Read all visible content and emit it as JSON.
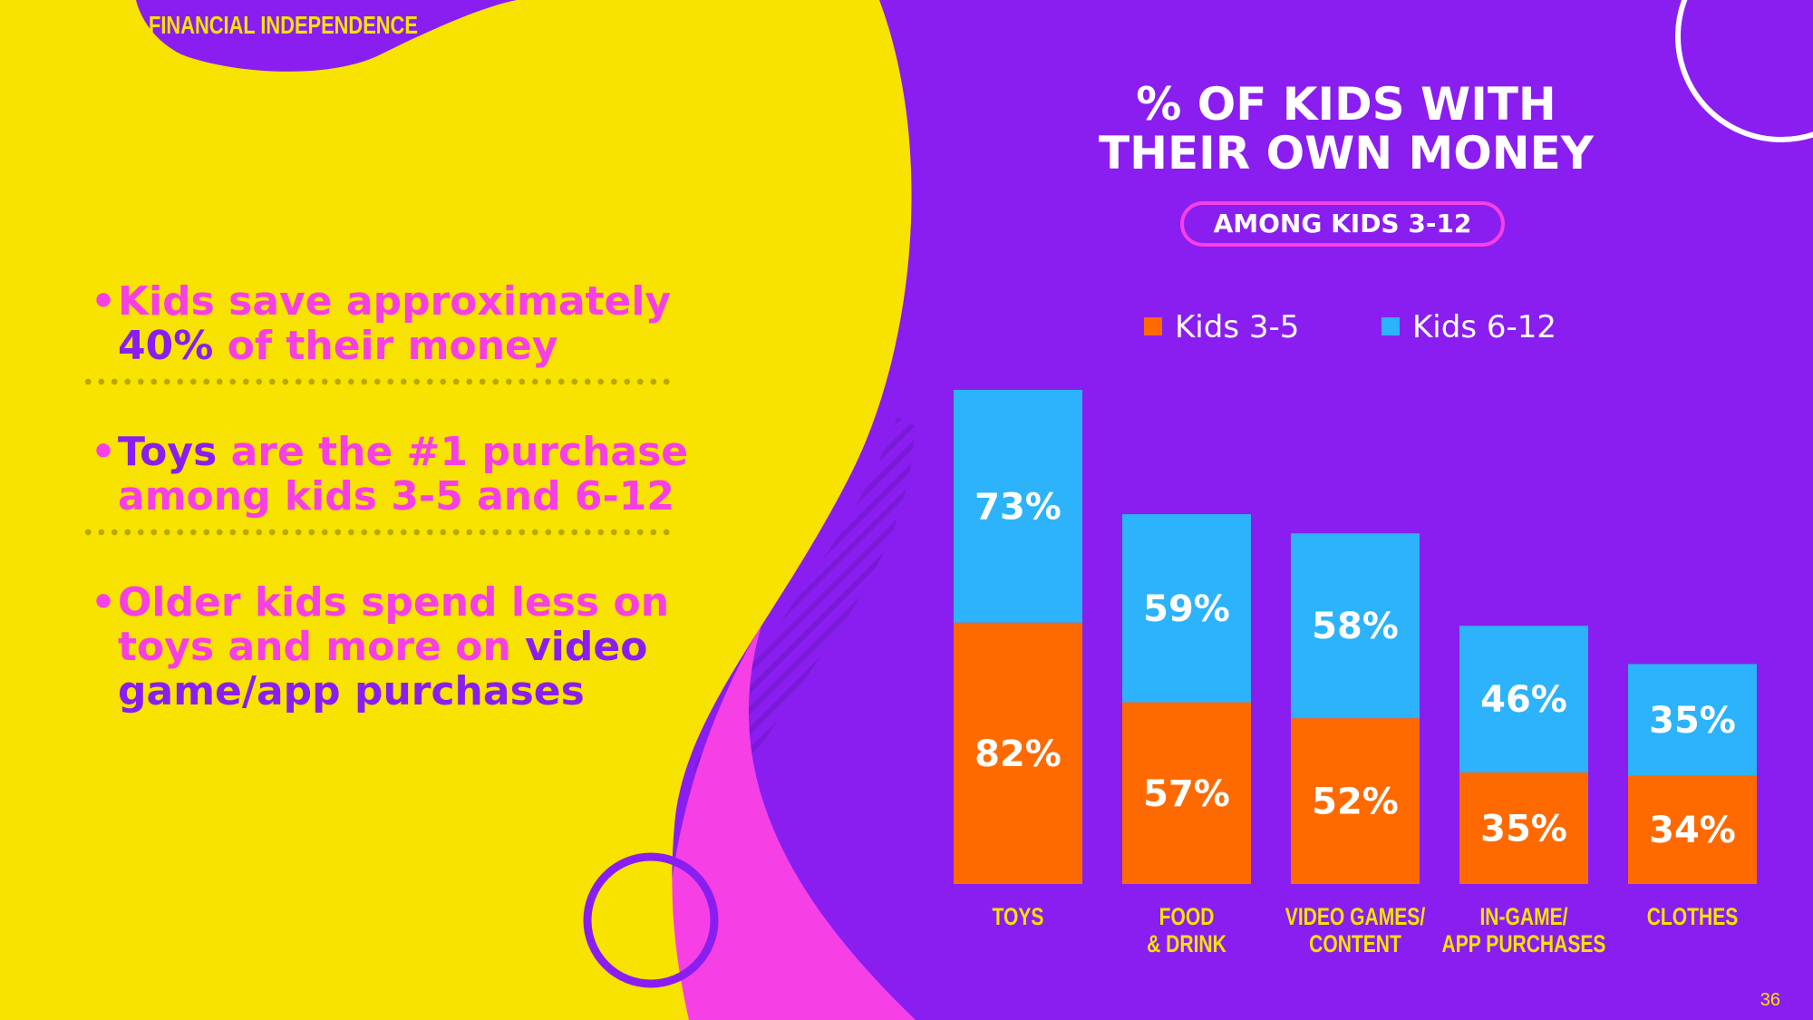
{
  "header": {
    "section": "FINANCIAL INDEPENDENCE"
  },
  "bullets": [
    {
      "parts": [
        {
          "t": "Kids save approximately ",
          "s": false
        },
        {
          "t": "40%",
          "s": true
        },
        {
          "t": " of their money",
          "s": false
        }
      ]
    },
    {
      "parts": [
        {
          "t": "Toys",
          "s": true
        },
        {
          "t": " are the #1 purchase among kids 3-5 and 6-12",
          "s": false
        }
      ]
    },
    {
      "parts": [
        {
          "t": "Older kids spend less on toys and more on ",
          "s": false
        },
        {
          "t": "video game/app purchases",
          "s": true
        }
      ]
    }
  ],
  "chart_header": {
    "title_line1": "% OF KIDS WITH",
    "title_line2": "THEIR OWN MONEY",
    "subtitle": "AMONG KIDS 3-12"
  },
  "colors": {
    "purple": "#8a1ef0",
    "yellow": "#f7e200",
    "magenta": "#f73fe6",
    "orange": "#ff6a00",
    "blue": "#2cb3fb"
  },
  "chart_data": {
    "type": "bar",
    "stacked": true,
    "title": "% OF KIDS WITH THEIR OWN MONEY",
    "subtitle": "AMONG KIDS 3-12",
    "categories": [
      [
        "TOYS"
      ],
      [
        "FOOD",
        "& DRINK"
      ],
      [
        "VIDEO GAMES/",
        "CONTENT"
      ],
      [
        "IN-GAME/",
        "APP PURCHASES"
      ],
      [
        "CLOTHES"
      ]
    ],
    "series": [
      {
        "name": "Kids 3-5",
        "color": "#ff6a00",
        "values": [
          82,
          57,
          52,
          35,
          34
        ]
      },
      {
        "name": "Kids 6-12",
        "color": "#2cb3fb",
        "values": [
          73,
          59,
          58,
          46,
          35
        ]
      }
    ],
    "value_suffix": "%",
    "legend_position": "top",
    "ylim": [
      0,
      155
    ]
  },
  "footer": {
    "page_number": "36"
  }
}
